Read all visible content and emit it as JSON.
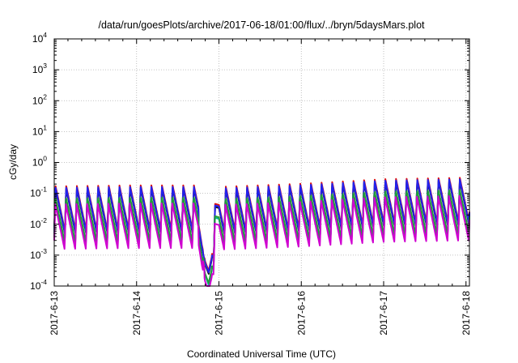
{
  "chart_data": {
    "type": "line",
    "title": "/data/run/goesPlots/archive/2017-06-18/01:00/flux/../bryn/5daysMars.plot",
    "xlabel": "Coordinated Universal Time (UTC)",
    "ylabel": "cGy/day",
    "yscale": "log",
    "ylim": [
      0.0001,
      10000
    ],
    "ytick_exponents": [
      "4",
      "3",
      "2",
      "1",
      "0",
      "-1",
      "-2",
      "-3",
      "-4"
    ],
    "xlim": [
      "2017-06-13T00:00",
      "2017-06-18T01:00"
    ],
    "xtick_labels": [
      "2017-6-13",
      "2017-6-14",
      "2017-6-15",
      "2017-6-16",
      "2017-6-17",
      "2017-6-18"
    ],
    "grid": true,
    "series_colors": [
      "#e01010",
      "#1a1a1a",
      "#2222ee",
      "#00aaaa",
      "#1f9e3a",
      "#d000d0"
    ],
    "series_level_offsets_log10": [
      0.1,
      0.0,
      0.05,
      -0.35,
      -0.3,
      -0.55
    ],
    "envelope": {
      "description_in_data_units": "sawtooth oscillating roughly every 3 hours between ~5e-4 and ~8e-2 cGy/day",
      "period_hours": 3.1,
      "baseline_log10": [
        [
          "2017-06-13T00:00",
          -1.58
        ],
        [
          "2017-06-14T00:00",
          -1.55
        ],
        [
          "2017-06-14T18:00",
          -1.55
        ],
        [
          "2017-06-14T19:00",
          -2.25
        ],
        [
          "2017-06-14T20:00",
          -2.8
        ],
        [
          "2017-06-14T21:00",
          -3.1
        ],
        [
          "2017-06-15T00:00",
          -1.6
        ],
        [
          "2017-06-16T00:00",
          -1.5
        ],
        [
          "2017-06-17T00:00",
          -1.35
        ],
        [
          "2017-06-18T01:00",
          -1.3
        ]
      ],
      "amplitude_log10": 1.45
    }
  }
}
